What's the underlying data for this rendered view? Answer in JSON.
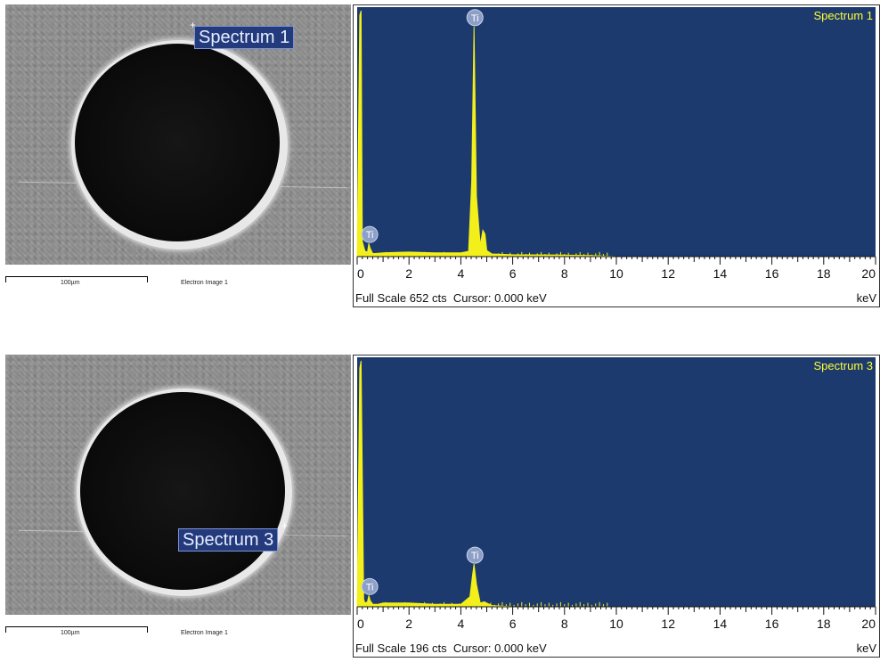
{
  "panels": [
    {
      "sem": {
        "spectrum_label": "Spectrum 1",
        "scale_text": "100µm",
        "caption": "Electron Image 1"
      },
      "spectrum": {
        "name": "Spectrum 1",
        "full_scale": "Full Scale 652 cts",
        "cursor": "Cursor: 0.000 keV",
        "unit": "keV",
        "peak_labels": [
          "Ti",
          "Ti"
        ]
      }
    },
    {
      "sem": {
        "spectrum_label": "Spectrum 3",
        "scale_text": "100µm",
        "caption": "Electron Image 1"
      },
      "spectrum": {
        "name": "Spectrum 3",
        "full_scale": "Full Scale 196 cts",
        "cursor": "Cursor: 0.000 keV",
        "unit": "keV",
        "peak_labels": [
          "Ti",
          "Ti"
        ]
      }
    }
  ],
  "colors": {
    "plot_bg": "#1d3a6e",
    "spectrum_fill": "#f2ef1a",
    "label_bg": "#233a7c"
  },
  "chart_data": [
    {
      "type": "area",
      "title": "Spectrum 1",
      "xlabel": "keV",
      "ylabel": "",
      "xlim": [
        0,
        20
      ],
      "ylim": [
        0,
        652
      ],
      "x_ticks": [
        0,
        2,
        4,
        6,
        8,
        10,
        12,
        14,
        16,
        18,
        20
      ],
      "series": [
        {
          "x": [
            0.0,
            0.1,
            0.15,
            0.2,
            0.3,
            0.4,
            0.45,
            0.5,
            0.6,
            0.8,
            1.0,
            1.5,
            2.0,
            3.0,
            4.0,
            4.3,
            4.42,
            4.51,
            4.6,
            4.75,
            4.85,
            4.93,
            5.0,
            5.2,
            6.0,
            8.0,
            9.0,
            10.0,
            20.0
          ],
          "y": [
            0,
            640,
            652,
            40,
            15,
            12,
            35,
            22,
            8,
            9,
            10,
            11,
            12,
            10,
            10,
            14,
            200,
            610,
            160,
            30,
            70,
            60,
            16,
            7,
            5,
            4,
            3,
            0,
            0
          ]
        }
      ],
      "peak_annotations": [
        {
          "label": "Ti",
          "x": 0.45
        },
        {
          "label": "Ti",
          "x": 4.51
        }
      ]
    },
    {
      "type": "area",
      "title": "Spectrum 3",
      "xlabel": "keV",
      "ylabel": "",
      "xlim": [
        0,
        20
      ],
      "ylim": [
        0,
        196
      ],
      "x_ticks": [
        0,
        2,
        4,
        6,
        8,
        10,
        12,
        14,
        16,
        18,
        20
      ],
      "series": [
        {
          "x": [
            0.0,
            0.1,
            0.15,
            0.25,
            0.3,
            0.4,
            0.45,
            0.5,
            0.6,
            0.8,
            1.0,
            2.0,
            3.0,
            4.0,
            4.35,
            4.45,
            4.51,
            4.6,
            4.75,
            4.9,
            5.0,
            5.2,
            6.0,
            20.0
          ],
          "y": [
            0,
            190,
            196,
            6,
            3,
            4,
            9,
            5,
            2,
            2,
            3,
            3,
            2,
            2,
            8,
            25,
            34,
            18,
            3,
            4,
            3,
            1,
            0,
            0
          ]
        }
      ],
      "peak_annotations": [
        {
          "label": "Ti",
          "x": 0.45
        },
        {
          "label": "Ti",
          "x": 4.51
        }
      ]
    }
  ]
}
